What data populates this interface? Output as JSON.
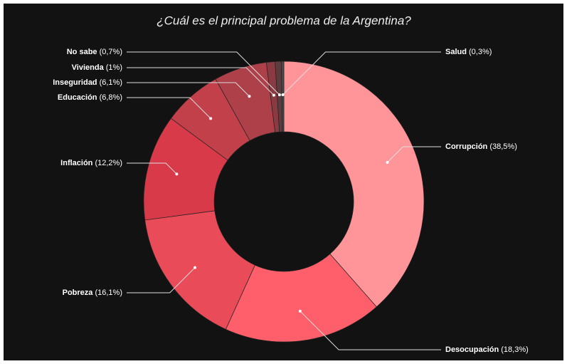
{
  "chart_data": {
    "type": "donut",
    "title": "¿Cuál es el principal problema de la Argentina?",
    "categories": [
      "Corrupción",
      "Desocupación",
      "Pobreza",
      "Inflación",
      "Educación",
      "Inseguridad",
      "Vivienda",
      "No sabe",
      "Salud"
    ],
    "values": [
      38.5,
      18.3,
      16.1,
      12.2,
      6.8,
      6.1,
      1,
      0.7,
      0.3
    ],
    "value_labels": [
      "(38,5%)",
      "(18,3%)",
      "(16,1%)",
      "(12,2%)",
      "(6,8%)",
      "(6,1%)",
      "(1%)",
      "(0,7%)",
      "(0,3%)"
    ],
    "colors": [
      "#ff9599",
      "#ff5f6b",
      "#ea4b58",
      "#d93a4a",
      "#c2404a",
      "#ad4048",
      "#8a3a40",
      "#5e3b3e",
      "#4a4a4a"
    ]
  }
}
